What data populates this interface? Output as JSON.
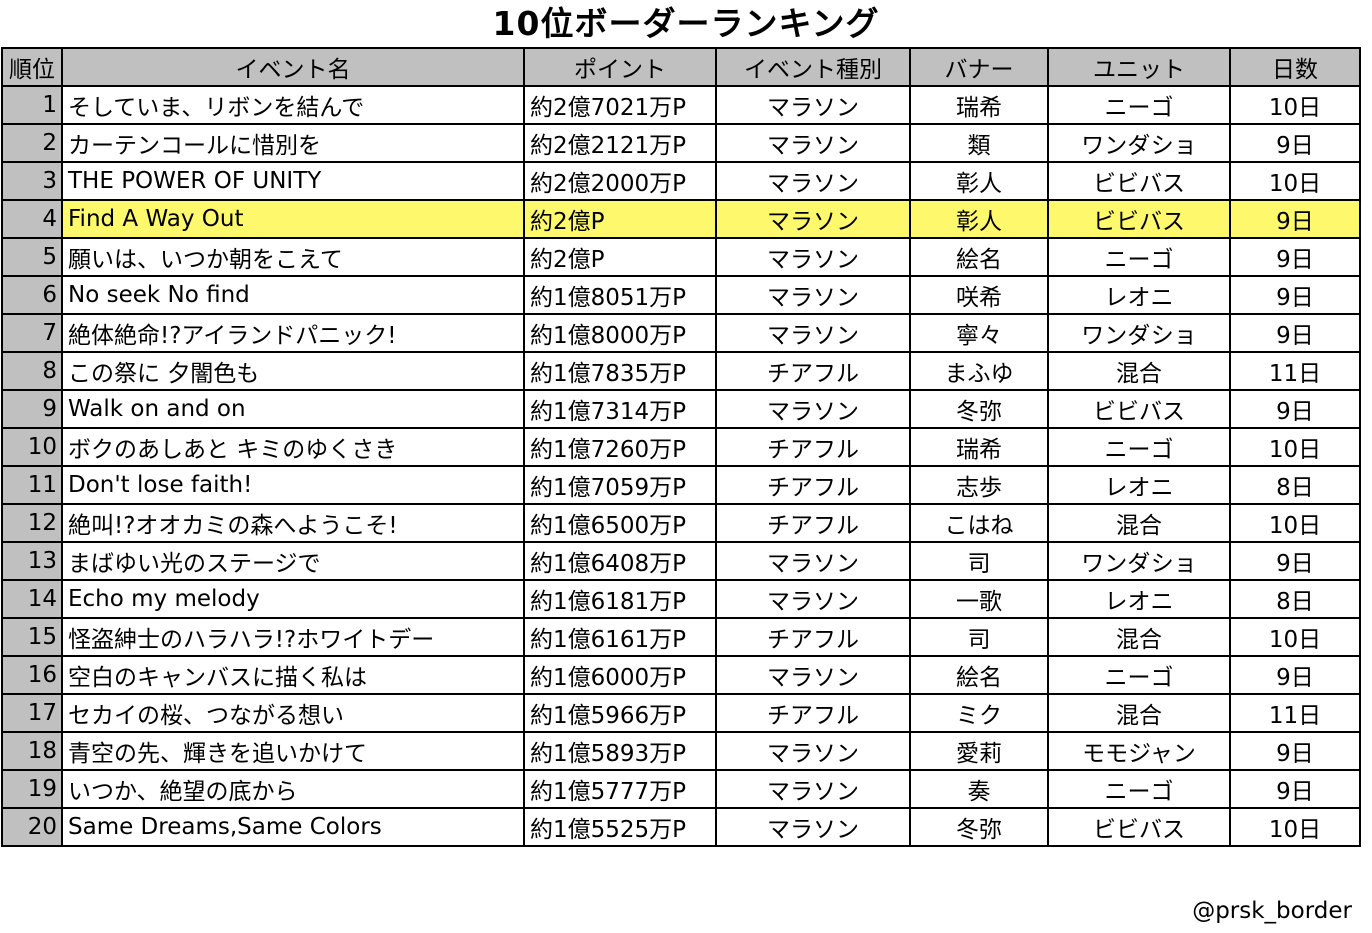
{
  "title": "10位ボーダーランキング",
  "columns": {
    "rank": "順位",
    "name": "イベント名",
    "point": "ポイント",
    "type": "イベント種別",
    "banner": "バナー",
    "unit": "ユニット",
    "days": "日数"
  },
  "highlight_color": "#fdf86c",
  "header_color": "#c0c0c0",
  "rows": [
    {
      "rank": "1",
      "name": "そしていま、リボンを結んで",
      "point": "約2億7021万P",
      "type": "マラソン",
      "banner": "瑞希",
      "unit": "ニーゴ",
      "days": "10日",
      "highlight": false
    },
    {
      "rank": "2",
      "name": "カーテンコールに惜別を",
      "point": "約2億2121万P",
      "type": "マラソン",
      "banner": "類",
      "unit": "ワンダショ",
      "days": "9日",
      "highlight": false
    },
    {
      "rank": "3",
      "name": "THE POWER OF UNITY",
      "point": "約2億2000万P",
      "type": "マラソン",
      "banner": "彰人",
      "unit": "ビビバス",
      "days": "10日",
      "highlight": false
    },
    {
      "rank": "4",
      "name": "Find A Way Out",
      "point": "約2億P",
      "type": "マラソン",
      "banner": "彰人",
      "unit": "ビビバス",
      "days": "9日",
      "highlight": true
    },
    {
      "rank": "5",
      "name": "願いは、いつか朝をこえて",
      "point": "約2億P",
      "type": "マラソン",
      "banner": "絵名",
      "unit": "ニーゴ",
      "days": "9日",
      "highlight": false
    },
    {
      "rank": "6",
      "name": "No seek No find",
      "point": "約1億8051万P",
      "type": "マラソン",
      "banner": "咲希",
      "unit": "レオニ",
      "days": "9日",
      "highlight": false
    },
    {
      "rank": "7",
      "name": "絶体絶命!?アイランドパニック!",
      "point": "約1億8000万P",
      "type": "マラソン",
      "banner": "寧々",
      "unit": "ワンダショ",
      "days": "9日",
      "highlight": false
    },
    {
      "rank": "8",
      "name": "この祭に 夕闇色も",
      "point": "約1億7835万P",
      "type": "チアフル",
      "banner": "まふゆ",
      "unit": "混合",
      "days": "11日",
      "highlight": false
    },
    {
      "rank": "9",
      "name": "Walk on and on",
      "point": "約1億7314万P",
      "type": "マラソン",
      "banner": "冬弥",
      "unit": "ビビバス",
      "days": "9日",
      "highlight": false
    },
    {
      "rank": "10",
      "name": "ボクのあしあと キミのゆくさき",
      "point": "約1億7260万P",
      "type": "チアフル",
      "banner": "瑞希",
      "unit": "ニーゴ",
      "days": "10日",
      "highlight": false
    },
    {
      "rank": "11",
      "name": "Don't lose faith!",
      "point": "約1億7059万P",
      "type": "チアフル",
      "banner": "志歩",
      "unit": "レオニ",
      "days": "8日",
      "highlight": false
    },
    {
      "rank": "12",
      "name": "絶叫!?オオカミの森へようこそ!",
      "point": "約1億6500万P",
      "type": "チアフル",
      "banner": "こはね",
      "unit": "混合",
      "days": "10日",
      "highlight": false
    },
    {
      "rank": "13",
      "name": "まばゆい光のステージで",
      "point": "約1億6408万P",
      "type": "マラソン",
      "banner": "司",
      "unit": "ワンダショ",
      "days": "9日",
      "highlight": false
    },
    {
      "rank": "14",
      "name": "Echo my melody",
      "point": "約1億6181万P",
      "type": "マラソン",
      "banner": "一歌",
      "unit": "レオニ",
      "days": "8日",
      "highlight": false
    },
    {
      "rank": "15",
      "name": "怪盗紳士のハラハラ!?ホワイトデー",
      "point": "約1億6161万P",
      "type": "チアフル",
      "banner": "司",
      "unit": "混合",
      "days": "10日",
      "highlight": false
    },
    {
      "rank": "16",
      "name": "空白のキャンバスに描く私は",
      "point": "約1億6000万P",
      "type": "マラソン",
      "banner": "絵名",
      "unit": "ニーゴ",
      "days": "9日",
      "highlight": false
    },
    {
      "rank": "17",
      "name": "セカイの桜、つながる想い",
      "point": "約1億5966万P",
      "type": "チアフル",
      "banner": "ミク",
      "unit": "混合",
      "days": "11日",
      "highlight": false
    },
    {
      "rank": "18",
      "name": "青空の先、輝きを追いかけて",
      "point": "約1億5893万P",
      "type": "マラソン",
      "banner": "愛莉",
      "unit": "モモジャン",
      "days": "9日",
      "highlight": false
    },
    {
      "rank": "19",
      "name": "いつか、絶望の底から",
      "point": "約1億5777万P",
      "type": "マラソン",
      "banner": "奏",
      "unit": "ニーゴ",
      "days": "9日",
      "highlight": false
    },
    {
      "rank": "20",
      "name": "Same Dreams,Same Colors",
      "point": "約1億5525万P",
      "type": "マラソン",
      "banner": "冬弥",
      "unit": "ビビバス",
      "days": "10日",
      "highlight": false
    }
  ],
  "credit": "@prsk_border"
}
